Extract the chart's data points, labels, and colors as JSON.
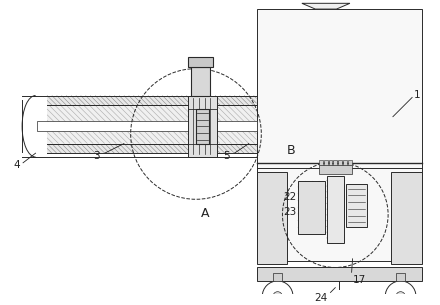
{
  "bg_color": "#ffffff",
  "line_color": "#2a2a2a",
  "fig_width": 4.4,
  "fig_height": 3.05,
  "dpi": 100
}
